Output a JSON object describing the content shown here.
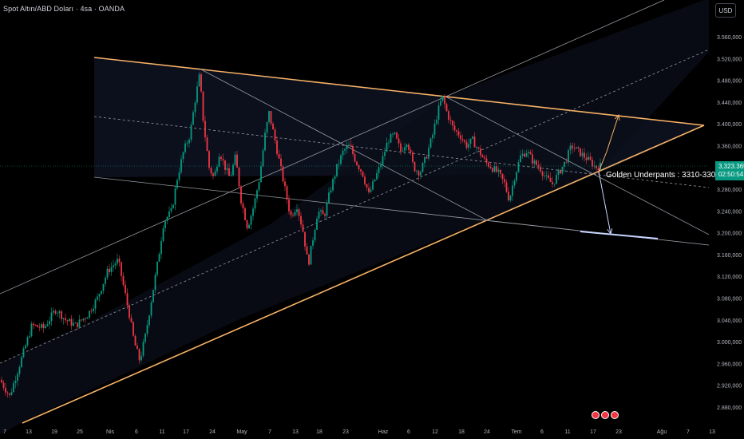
{
  "header": {
    "legend": "Spot Altın/ABD Doları · 4sa · OANDA",
    "currency_button": "USD"
  },
  "price_tag": {
    "price": "3,323.365",
    "countdown": "02:50:54"
  },
  "annotation": "Golden Underpants : 3310-3300",
  "colors": {
    "background": "#000000",
    "up": "#089981",
    "down": "#f23645",
    "trendline": "#f7b267",
    "channel": "#9598a1",
    "axis_text": "#b2b5be"
  },
  "chart_data": {
    "type": "candlestick",
    "title": "",
    "xlabel": "",
    "ylabel": "",
    "ylim": [
      2860,
      3600
    ],
    "y_ticks": [
      "3.560,000",
      "3.520,000",
      "3.480,000",
      "3.440,000",
      "3.400,000",
      "3.360,000",
      "3.320,000",
      "3.280,000",
      "3.240,000",
      "3.200,000",
      "3.160,000",
      "3.120,000",
      "3.080,000",
      "3.040,000",
      "3.000,000",
      "2.960,000",
      "2.920,000",
      "2.880,000"
    ],
    "x_ticks": [
      "7",
      "13",
      "19",
      "25",
      "Nis",
      "6",
      "11",
      "17",
      "24",
      "May",
      "7",
      "13",
      "18",
      "23",
      "Haz",
      "6",
      "12",
      "18",
      "24",
      "Tem",
      "6",
      "11",
      "17",
      "23",
      "Ağu",
      "7",
      "13"
    ],
    "close_path": [
      [
        0,
        2930
      ],
      [
        12,
        2900
      ],
      [
        25,
        2960
      ],
      [
        40,
        3030
      ],
      [
        55,
        3025
      ],
      [
        70,
        3060
      ],
      [
        82,
        3040
      ],
      [
        95,
        3030
      ],
      [
        110,
        3050
      ],
      [
        122,
        3080
      ],
      [
        135,
        3130
      ],
      [
        148,
        3150
      ],
      [
        155,
        3100
      ],
      [
        162,
        3050
      ],
      [
        168,
        3000
      ],
      [
        175,
        2965
      ],
      [
        182,
        3010
      ],
      [
        190,
        3080
      ],
      [
        198,
        3150
      ],
      [
        205,
        3220
      ],
      [
        215,
        3240
      ],
      [
        222,
        3300
      ],
      [
        230,
        3350
      ],
      [
        238,
        3380
      ],
      [
        244,
        3440
      ],
      [
        250,
        3490
      ],
      [
        255,
        3400
      ],
      [
        262,
        3320
      ],
      [
        268,
        3300
      ],
      [
        275,
        3350
      ],
      [
        282,
        3320
      ],
      [
        288,
        3300
      ],
      [
        295,
        3340
      ],
      [
        302,
        3260
      ],
      [
        310,
        3210
      ],
      [
        318,
        3250
      ],
      [
        325,
        3300
      ],
      [
        332,
        3380
      ],
      [
        337,
        3420
      ],
      [
        343,
        3380
      ],
      [
        350,
        3330
      ],
      [
        357,
        3280
      ],
      [
        364,
        3230
      ],
      [
        372,
        3250
      ],
      [
        380,
        3200
      ],
      [
        386,
        3140
      ],
      [
        392,
        3190
      ],
      [
        398,
        3240
      ],
      [
        406,
        3230
      ],
      [
        414,
        3280
      ],
      [
        422,
        3320
      ],
      [
        430,
        3350
      ],
      [
        438,
        3360
      ],
      [
        446,
        3330
      ],
      [
        454,
        3310
      ],
      [
        462,
        3270
      ],
      [
        470,
        3300
      ],
      [
        478,
        3330
      ],
      [
        486,
        3370
      ],
      [
        494,
        3380
      ],
      [
        502,
        3350
      ],
      [
        510,
        3370
      ],
      [
        518,
        3320
      ],
      [
        526,
        3310
      ],
      [
        534,
        3340
      ],
      [
        542,
        3380
      ],
      [
        548,
        3420
      ],
      [
        554,
        3450
      ],
      [
        560,
        3420
      ],
      [
        568,
        3390
      ],
      [
        576,
        3380
      ],
      [
        584,
        3360
      ],
      [
        592,
        3370
      ],
      [
        600,
        3350
      ],
      [
        608,
        3330
      ],
      [
        616,
        3320
      ],
      [
        624,
        3310
      ],
      [
        632,
        3290
      ],
      [
        638,
        3260
      ],
      [
        644,
        3300
      ],
      [
        652,
        3340
      ],
      [
        660,
        3350
      ],
      [
        668,
        3330
      ],
      [
        676,
        3320
      ],
      [
        684,
        3300
      ],
      [
        692,
        3290
      ],
      [
        700,
        3310
      ],
      [
        708,
        3330
      ],
      [
        716,
        3360
      ],
      [
        724,
        3350
      ],
      [
        732,
        3340
      ],
      [
        740,
        3330
      ],
      [
        746,
        3320
      ],
      [
        752,
        3323
      ]
    ]
  }
}
